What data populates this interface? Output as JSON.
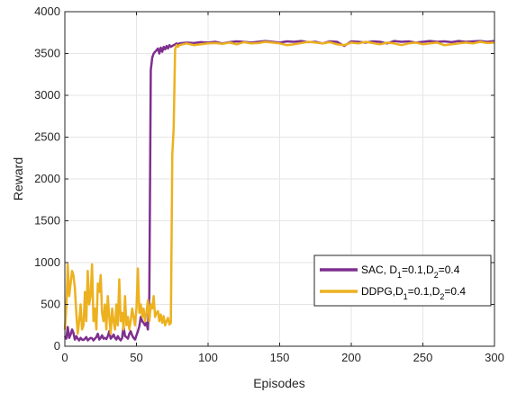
{
  "chart_data": {
    "type": "line",
    "xlabel": "Episodes",
    "ylabel": "Reward",
    "xlim": [
      0,
      300
    ],
    "ylim": [
      0,
      4000
    ],
    "xticks": [
      "0",
      "50",
      "100",
      "150",
      "200",
      "250",
      "300"
    ],
    "yticks": [
      "0",
      "500",
      "1000",
      "1500",
      "2000",
      "2500",
      "3000",
      "3500",
      "4000"
    ],
    "grid": true,
    "legend_position": "right",
    "series": [
      {
        "name": "SAC, D1=0.1,D2=0.4",
        "legend_parts": [
          "SAC,    D",
          "1",
          "=0.1,D",
          "2",
          "=0.4"
        ],
        "color": "#7E2F8E",
        "x": [
          0,
          1,
          2,
          3,
          4,
          5,
          6,
          7,
          8,
          9,
          10,
          11,
          12,
          13,
          14,
          15,
          16,
          17,
          18,
          19,
          20,
          21,
          22,
          23,
          24,
          25,
          26,
          27,
          28,
          29,
          30,
          31,
          32,
          33,
          34,
          35,
          36,
          37,
          38,
          39,
          40,
          41,
          42,
          43,
          44,
          45,
          46,
          47,
          48,
          49,
          50,
          51,
          52,
          53,
          54,
          55,
          56,
          57,
          58,
          59,
          60,
          61,
          62,
          63,
          64,
          65,
          66,
          67,
          68,
          69,
          70,
          71,
          72,
          73,
          74,
          75,
          76,
          77,
          78,
          79,
          80,
          85,
          90,
          95,
          100,
          105,
          110,
          115,
          120,
          125,
          130,
          135,
          140,
          145,
          150,
          155,
          160,
          165,
          170,
          175,
          180,
          185,
          190,
          195,
          200,
          205,
          210,
          215,
          220,
          225,
          230,
          235,
          240,
          245,
          250,
          255,
          260,
          265,
          270,
          275,
          280,
          285,
          290,
          295,
          300
        ],
        "values": [
          120,
          90,
          230,
          100,
          140,
          200,
          160,
          80,
          120,
          90,
          70,
          100,
          80,
          75,
          90,
          110,
          70,
          85,
          100,
          95,
          70,
          90,
          110,
          150,
          80,
          100,
          130,
          90,
          100,
          85,
          120,
          180,
          90,
          110,
          140,
          100,
          80,
          120,
          90,
          70,
          100,
          240,
          120,
          110,
          90,
          150,
          180,
          130,
          100,
          80,
          130,
          180,
          240,
          350,
          300,
          280,
          250,
          280,
          200,
          600,
          3300,
          3450,
          3500,
          3520,
          3540,
          3560,
          3500,
          3570,
          3520,
          3580,
          3550,
          3590,
          3560,
          3600,
          3580,
          3590,
          3600,
          3610,
          3620,
          3610,
          3620,
          3630,
          3625,
          3635,
          3630,
          3640,
          3620,
          3635,
          3645,
          3640,
          3630,
          3640,
          3650,
          3640,
          3630,
          3645,
          3640,
          3650,
          3635,
          3640,
          3620,
          3645,
          3640,
          3590,
          3645,
          3640,
          3630,
          3645,
          3640,
          3620,
          3650,
          3640,
          3645,
          3630,
          3640,
          3650,
          3640,
          3645,
          3635,
          3650,
          3640,
          3645,
          3650,
          3640,
          3650
        ]
      },
      {
        "name": "DDPG,D1=0.1,D2=0.4",
        "legend_parts": [
          "DDPG,D",
          "1",
          "=0.1,D",
          "2",
          "=0.4"
        ],
        "color": "#EDB120",
        "x": [
          0,
          1,
          2,
          3,
          4,
          5,
          6,
          7,
          8,
          9,
          10,
          11,
          12,
          13,
          14,
          15,
          16,
          17,
          18,
          19,
          20,
          21,
          22,
          23,
          24,
          25,
          26,
          27,
          28,
          29,
          30,
          31,
          32,
          33,
          34,
          35,
          36,
          37,
          38,
          39,
          40,
          41,
          42,
          43,
          44,
          45,
          46,
          47,
          48,
          49,
          50,
          51,
          52,
          53,
          54,
          55,
          56,
          57,
          58,
          59,
          60,
          61,
          62,
          63,
          64,
          65,
          66,
          67,
          68,
          69,
          70,
          71,
          72,
          73,
          74,
          75,
          76,
          77,
          78,
          79,
          80,
          85,
          90,
          95,
          100,
          105,
          110,
          115,
          120,
          125,
          130,
          135,
          140,
          145,
          150,
          155,
          160,
          165,
          170,
          175,
          180,
          185,
          190,
          195,
          200,
          205,
          210,
          215,
          220,
          225,
          230,
          235,
          240,
          245,
          250,
          255,
          260,
          265,
          270,
          275,
          280,
          285,
          290,
          295,
          300
        ],
        "values": [
          200,
          450,
          980,
          600,
          750,
          900,
          850,
          700,
          400,
          150,
          300,
          500,
          200,
          250,
          650,
          300,
          900,
          500,
          600,
          980,
          300,
          450,
          200,
          750,
          650,
          850,
          400,
          300,
          500,
          200,
          600,
          350,
          150,
          450,
          300,
          200,
          500,
          250,
          800,
          300,
          400,
          200,
          600,
          250,
          350,
          200,
          300,
          450,
          350,
          250,
          450,
          930,
          400,
          500,
          350,
          450,
          300,
          400,
          550,
          300,
          500,
          450,
          600,
          350,
          400,
          420,
          300,
          380,
          280,
          360,
          250,
          300,
          340,
          260,
          280,
          2300,
          2600,
          3550,
          3600,
          3580,
          3600,
          3620,
          3600,
          3610,
          3620,
          3625,
          3615,
          3630,
          3610,
          3635,
          3620,
          3625,
          3640,
          3630,
          3620,
          3600,
          3610,
          3625,
          3640,
          3630,
          3620,
          3635,
          3610,
          3600,
          3630,
          3620,
          3640,
          3625,
          3610,
          3630,
          3620,
          3600,
          3620,
          3630,
          3610,
          3620,
          3630,
          3600,
          3610,
          3620,
          3630,
          3620,
          3640,
          3625,
          3630
        ]
      }
    ]
  }
}
